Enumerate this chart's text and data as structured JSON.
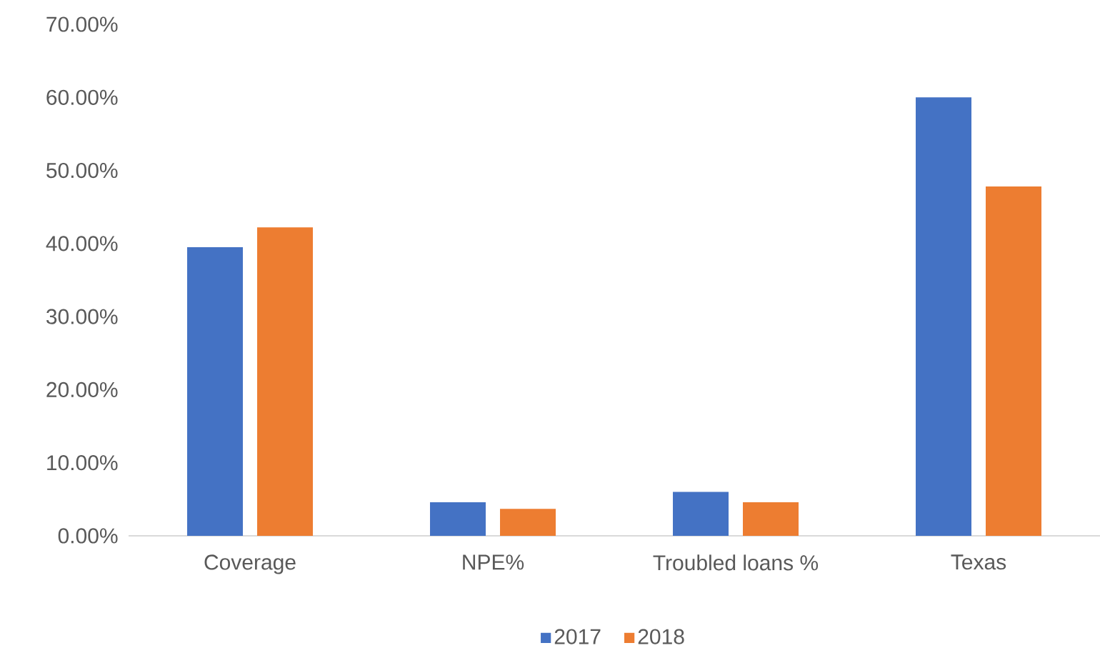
{
  "chart_data": {
    "type": "bar",
    "categories": [
      "Coverage",
      "NPE%",
      "Troubled loans %",
      "Texas"
    ],
    "series": [
      {
        "name": "2017",
        "color": "#4472c4",
        "values": [
          39.5,
          4.6,
          6.0,
          60.0
        ]
      },
      {
        "name": "2018",
        "color": "#ed7d31",
        "values": [
          42.2,
          3.7,
          4.6,
          47.8
        ]
      }
    ],
    "ylim": [
      0,
      70
    ],
    "yticks": [
      {
        "value": 0,
        "label": "0.00%"
      },
      {
        "value": 10,
        "label": "10.00%"
      },
      {
        "value": 20,
        "label": "20.00%"
      },
      {
        "value": 30,
        "label": "30.00%"
      },
      {
        "value": 40,
        "label": "40.00%"
      },
      {
        "value": 50,
        "label": "50.00%"
      },
      {
        "value": 60,
        "label": "60.00%"
      },
      {
        "value": 70,
        "label": "70.00%"
      }
    ],
    "grid": false,
    "legend": "bottom"
  }
}
